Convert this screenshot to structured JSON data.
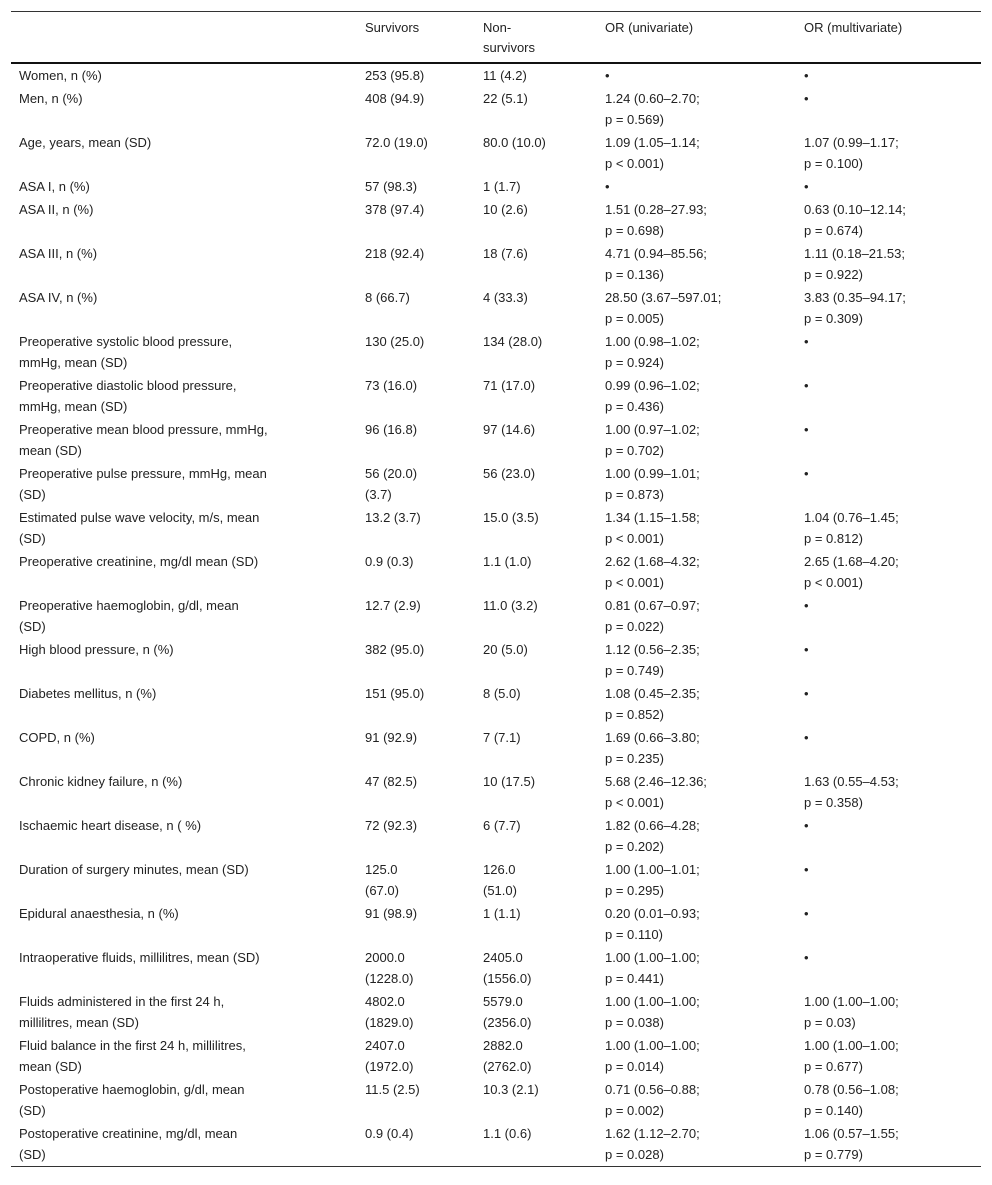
{
  "headers": [
    "",
    "Survivors",
    "Non-\nsurvivors",
    "OR (univariate)",
    "OR (multivariate)"
  ],
  "rows": [
    [
      "Women, n (%)",
      "253 (95.8)",
      "11 (4.2)",
      "•",
      "•"
    ],
    [
      "Men, n (%)",
      "408 (94.9)",
      "22 (5.1)",
      "1.24 (0.60–2.70;\np = 0.569)",
      "•"
    ],
    [
      "Age, years, mean (SD)",
      "72.0 (19.0)",
      "80.0 (10.0)",
      "1.09 (1.05–1.14;\np < 0.001)",
      "1.07 (0.99–1.17;\np = 0.100)"
    ],
    [
      "ASA I, n (%)",
      "57 (98.3)",
      "1 (1.7)",
      "•",
      "•"
    ],
    [
      "ASA II, n (%)",
      "378 (97.4)",
      "10 (2.6)",
      "1.51 (0.28–27.93;\np = 0.698)",
      "0.63 (0.10–12.14;\np = 0.674)"
    ],
    [
      "ASA III, n (%)",
      "218 (92.4)",
      "18 (7.6)",
      "4.71 (0.94–85.56;\np = 0.136)",
      "1.11 (0.18–21.53;\np = 0.922)"
    ],
    [
      "ASA IV, n (%)",
      "8 (66.7)",
      "4 (33.3)",
      "28.50 (3.67–597.01;\np = 0.005)",
      "3.83 (0.35–94.17;\np = 0.309)"
    ],
    [
      "Preoperative systolic blood pressure,\nmmHg, mean (SD)",
      "130 (25.0)",
      "134 (28.0)",
      "1.00 (0.98–1.02;\np = 0.924)",
      "•"
    ],
    [
      "Preoperative diastolic blood pressure,\nmmHg, mean (SD)",
      "73 (16.0)",
      "71 (17.0)",
      "0.99 (0.96–1.02;\np = 0.436)",
      "•"
    ],
    [
      "Preoperative mean blood pressure, mmHg,\nmean (SD)",
      "96 (16.8)",
      "97 (14.6)",
      "1.00 (0.97–1.02;\np = 0.702)",
      "•"
    ],
    [
      "Preoperative pulse pressure, mmHg, mean\n(SD)",
      "56 (20.0)\n(3.7)",
      "56 (23.0)",
      "1.00 (0.99–1.01;\np = 0.873)",
      "•"
    ],
    [
      "Estimated pulse wave velocity, m/s, mean\n(SD)",
      "13.2 (3.7)",
      "15.0 (3.5)",
      "1.34 (1.15–1.58;\np < 0.001)",
      "1.04 (0.76–1.45;\np = 0.812)"
    ],
    [
      "Preoperative creatinine, mg/dl mean (SD)",
      "0.9 (0.3)",
      "1.1 (1.0)",
      "2.62 (1.68–4.32;\np < 0.001)",
      "2.65 (1.68–4.20;\np < 0.001)"
    ],
    [
      "Preoperative haemoglobin, g/dl, mean\n(SD)",
      "12.7 (2.9)",
      "11.0 (3.2)",
      "0.81 (0.67–0.97;\np = 0.022)",
      "•"
    ],
    [
      "High blood pressure, n (%)",
      "382 (95.0)",
      "20 (5.0)",
      "1.12 (0.56–2.35;\np = 0.749)",
      "•"
    ],
    [
      "Diabetes mellitus, n (%)",
      "151 (95.0)",
      "8 (5.0)",
      "1.08 (0.45–2.35;\np = 0.852)",
      "•"
    ],
    [
      "COPD, n (%)",
      "91 (92.9)",
      "7 (7.1)",
      "1.69 (0.66–3.80;\np = 0.235)",
      "•"
    ],
    [
      "Chronic kidney failure, n (%)",
      "47 (82.5)",
      "10 (17.5)",
      "5.68 (2.46–12.36;\np < 0.001)",
      "1.63 (0.55–4.53;\np = 0.358)"
    ],
    [
      "Ischaemic heart disease, n ( %)",
      "72 (92.3)",
      "6 (7.7)",
      "1.82 (0.66–4.28;\np = 0.202)",
      "•"
    ],
    [
      "Duration of surgery minutes, mean (SD)",
      "125.0\n(67.0)",
      "126.0\n(51.0)",
      "1.00 (1.00–1.01;\np = 0.295)",
      "•"
    ],
    [
      "Epidural anaesthesia, n (%)",
      "91 (98.9)",
      "1 (1.1)",
      "0.20 (0.01–0.93;\np = 0.110)",
      "•"
    ],
    [
      "Intraoperative fluids, millilitres, mean (SD)",
      "2000.0\n(1228.0)",
      "2405.0\n(1556.0)",
      "1.00 (1.00–1.00;\np = 0.441)",
      "•"
    ],
    [
      "Fluids administered in the first 24 h,\nmillilitres, mean (SD)",
      "4802.0\n(1829.0)",
      "5579.0\n(2356.0)",
      "1.00 (1.00–1.00;\np = 0.038)",
      "1.00 (1.00–1.00;\np = 0.03)"
    ],
    [
      "Fluid balance in the first 24 h, millilitres,\nmean (SD)",
      "2407.0\n(1972.0)",
      "2882.0\n(2762.0)",
      "1.00 (1.00–1.00;\np = 0.014)",
      "1.00 (1.00–1.00;\np = 0.677)"
    ],
    [
      "Postoperative haemoglobin, g/dl, mean\n(SD)",
      "11.5 (2.5)",
      "10.3 (2.1)",
      "0.71 (0.56–0.88;\np = 0.002)",
      "0.78 (0.56–1.08;\np = 0.140)"
    ],
    [
      "Postoperative creatinine, mg/dl, mean\n(SD)",
      "0.9 (0.4)",
      "1.1 (0.6)",
      "1.62 (1.12–2.70;\np = 0.028)",
      "1.06 (0.57–1.55;\np = 0.779)"
    ]
  ]
}
